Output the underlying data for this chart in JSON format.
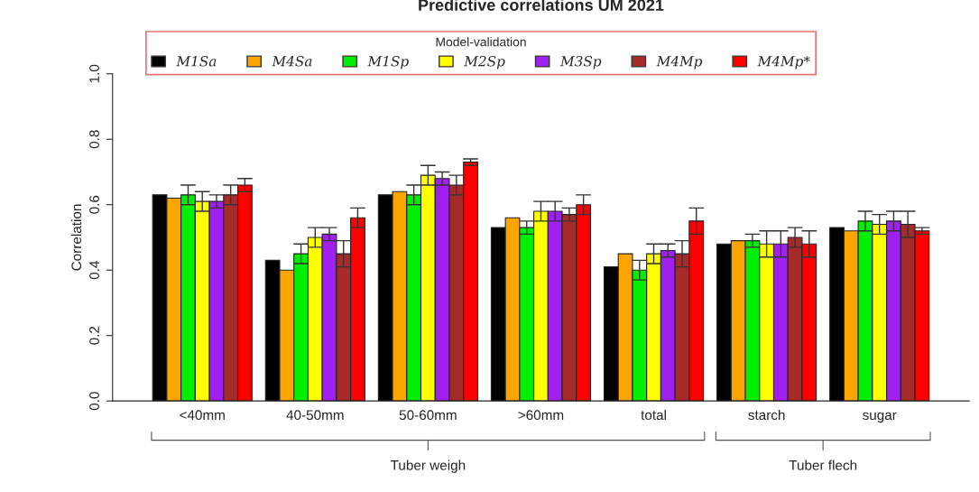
{
  "chart_data": {
    "type": "bar",
    "title": "Predictive correlations UM 2021",
    "ylabel": "Correlation",
    "legend_title": "Model-validation",
    "categories": [
      "<40mm",
      "40-50mm",
      "50-60mm",
      ">60mm",
      "total",
      "starch",
      "sugar"
    ],
    "series": [
      {
        "name": "M1Sa",
        "color": "#000000",
        "values": [
          0.63,
          0.43,
          0.63,
          0.53,
          0.41,
          0.48,
          0.53
        ]
      },
      {
        "name": "M4Sa",
        "color": "#ffa500",
        "values": [
          0.62,
          0.4,
          0.64,
          0.56,
          0.45,
          0.49,
          0.52
        ]
      },
      {
        "name": "M1Sp",
        "color": "#00ee00",
        "values": [
          0.63,
          0.45,
          0.63,
          0.53,
          0.4,
          0.49,
          0.55
        ],
        "errors": [
          0.03,
          0.03,
          0.03,
          0.02,
          0.03,
          0.02,
          0.03
        ]
      },
      {
        "name": "M2Sp",
        "color": "#ffff00",
        "values": [
          0.61,
          0.5,
          0.69,
          0.58,
          0.45,
          0.48,
          0.54
        ],
        "errors": [
          0.03,
          0.03,
          0.03,
          0.03,
          0.03,
          0.04,
          0.03
        ]
      },
      {
        "name": "M3Sp",
        "color": "#a020f0",
        "values": [
          0.61,
          0.51,
          0.68,
          0.58,
          0.46,
          0.48,
          0.55
        ],
        "errors": [
          0.02,
          0.02,
          0.02,
          0.03,
          0.02,
          0.04,
          0.03
        ]
      },
      {
        "name": "M4Mp",
        "color": "#a52a2a",
        "values": [
          0.63,
          0.45,
          0.66,
          0.57,
          0.45,
          0.5,
          0.54
        ],
        "errors": [
          0.03,
          0.04,
          0.03,
          0.02,
          0.04,
          0.03,
          0.04
        ]
      },
      {
        "name": "M4Mp*",
        "color": "#ff0000",
        "values": [
          0.66,
          0.56,
          0.73,
          0.6,
          0.55,
          0.48,
          0.52
        ],
        "errors": [
          0.02,
          0.03,
          0.01,
          0.03,
          0.04,
          0.04,
          0.01
        ]
      }
    ],
    "ylim": [
      0,
      1.0
    ],
    "yticks": [
      {
        "value": 0,
        "label": "0.0"
      },
      {
        "value": 0.2,
        "label": "0.2"
      },
      {
        "value": 0.4,
        "label": "0.4"
      },
      {
        "value": 0.6,
        "label": "0.6"
      },
      {
        "value": 0.8,
        "label": "0.8"
      },
      {
        "value": 1.0,
        "label": "1.0"
      }
    ],
    "grid": false,
    "legend": "top",
    "annotations": [
      "Tuber weigh",
      "Tuber flech"
    ]
  }
}
